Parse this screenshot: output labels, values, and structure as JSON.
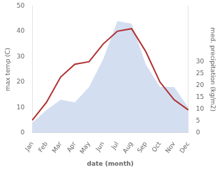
{
  "chart_data": {
    "type": "line",
    "xlabel": "date (month)",
    "ylabel": "max temp (C)",
    "y2label": "med. precipitation (kg/m2)",
    "categories": [
      "Jan",
      "Feb",
      "Mar",
      "Apr",
      "May",
      "Jun",
      "Jul",
      "Aug",
      "Sep",
      "Oct",
      "Nov",
      "Dec"
    ],
    "series": [
      {
        "type": "area",
        "axis": "y",
        "color": "#b8c8e8",
        "values": [
          4,
          9,
          13,
          12,
          18,
          29,
          44,
          43,
          27,
          18,
          18,
          10
        ]
      },
      {
        "type": "line",
        "axis": "y",
        "color": "#b03030",
        "values": [
          5,
          12,
          22,
          27,
          28,
          35,
          40,
          41,
          32,
          20,
          13,
          9
        ]
      }
    ],
    "ylim": [
      0,
      50
    ],
    "yticks": [
      0,
      10,
      20,
      30,
      40,
      50
    ],
    "y2lim": [
      0,
      53.333333333333336
    ],
    "y2ticks": [
      0,
      5,
      10,
      15,
      20,
      25,
      30
    ],
    "grid": false
  }
}
